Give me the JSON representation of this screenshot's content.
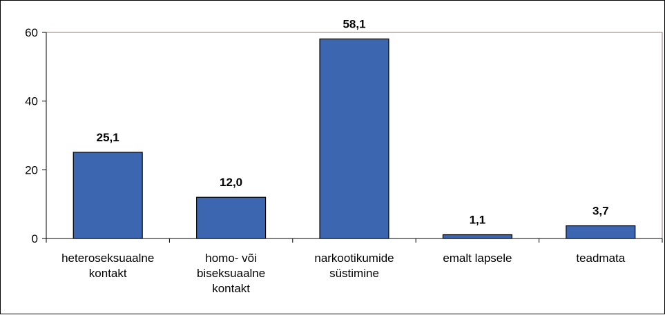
{
  "chart_data": {
    "type": "bar",
    "title": "",
    "xlabel": "",
    "ylabel": "",
    "categories": [
      [
        "heteroseksuaalne",
        "kontakt"
      ],
      [
        "homo- või",
        "biseksuaalne",
        "kontakt"
      ],
      [
        "narkootikumide",
        "süstimine"
      ],
      [
        "emalt lapsele"
      ],
      [
        "teadmata"
      ]
    ],
    "values": [
      25.1,
      12.0,
      58.1,
      1.1,
      3.7
    ],
    "value_labels": [
      "25,1",
      "12,0",
      "58,1",
      "1,1",
      "3,7"
    ],
    "ylim": [
      0,
      60
    ],
    "yticks": [
      0,
      20,
      40,
      60
    ],
    "ytick_labels": [
      "0",
      "20",
      "40",
      "60"
    ],
    "grid": false,
    "legend": "none",
    "colors": {
      "bar_fill": "#3c67b0",
      "bar_stroke": "#000000",
      "plot_border": "#8c7b7b",
      "axis": "#000000"
    }
  }
}
